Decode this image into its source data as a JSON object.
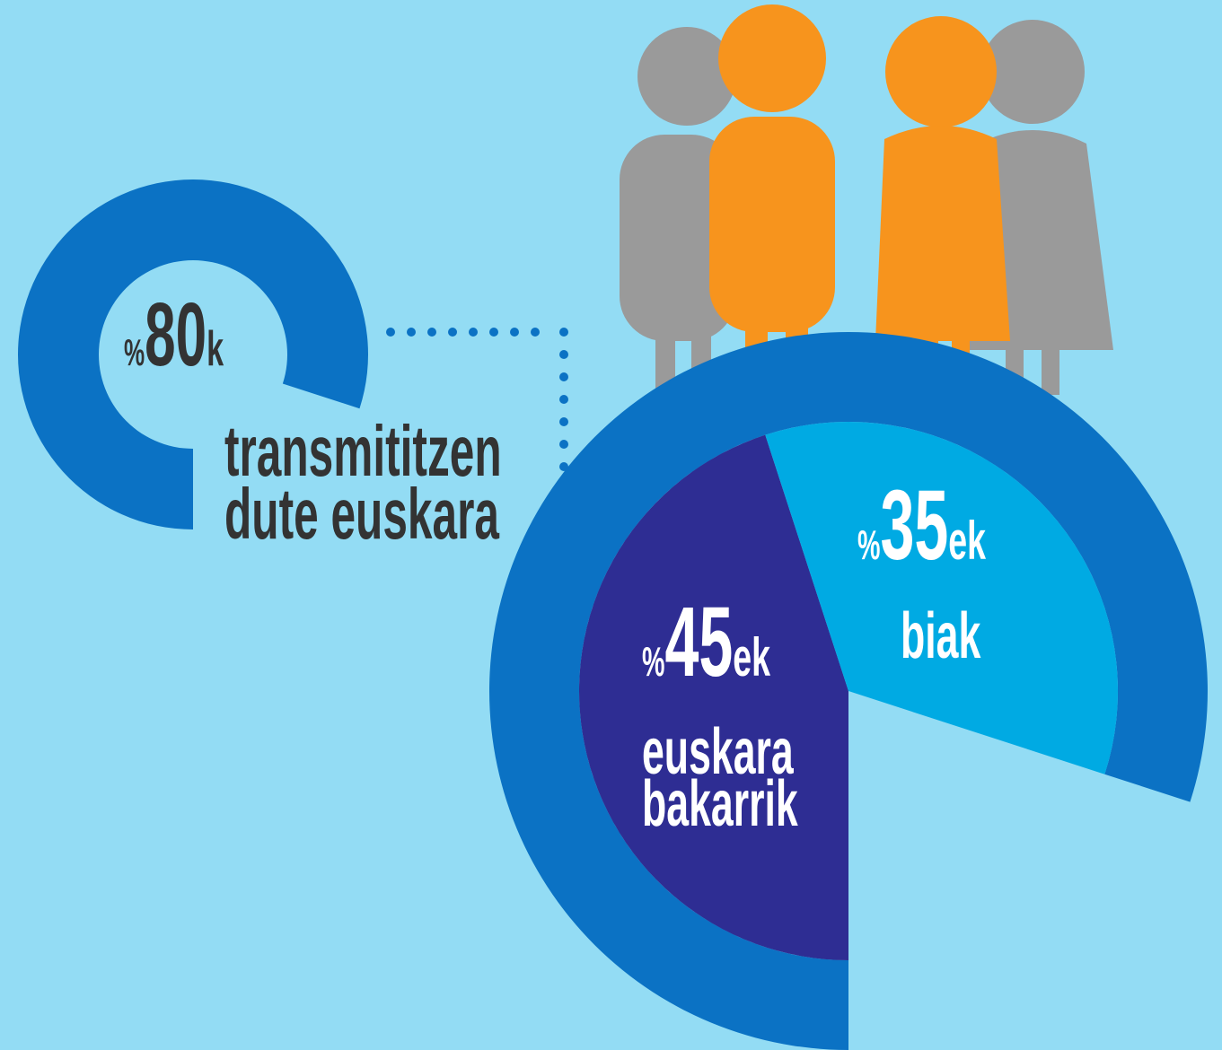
{
  "chart_data": [
    {
      "type": "donut",
      "values": [
        80
      ],
      "value_labels": [
        "%80k"
      ],
      "color": "#0b72c4",
      "description": [
        "transmititzen",
        "dute euskara"
      ]
    },
    {
      "type": "pie",
      "categories": [
        "euskara bakarrik",
        "biak"
      ],
      "values": [
        45,
        35
      ],
      "value_labels": [
        "%45ek",
        "%35ek"
      ],
      "colors": [
        "#2e2d93",
        "#00aae3"
      ]
    }
  ]
}
